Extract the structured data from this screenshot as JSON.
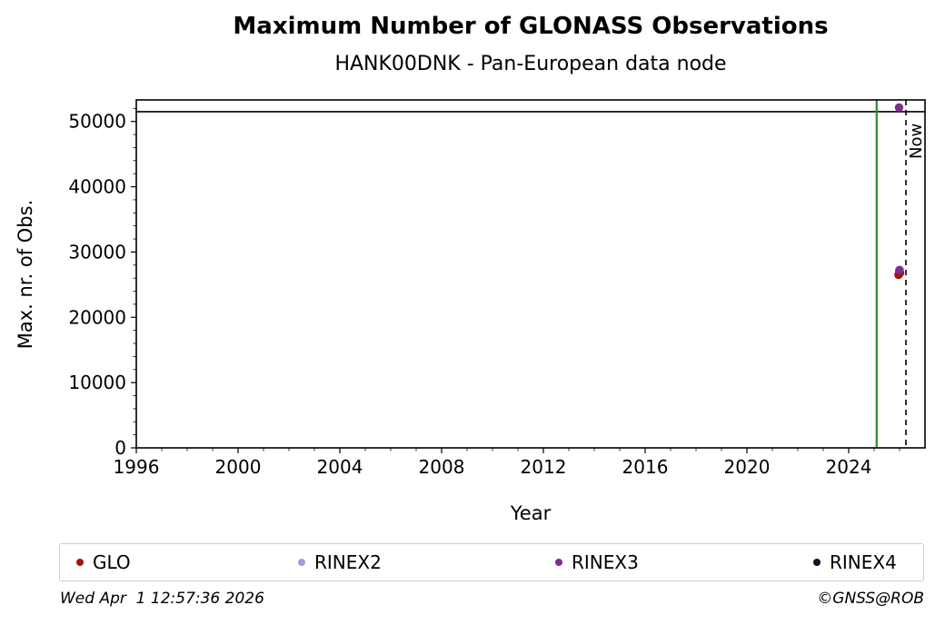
{
  "chart_data": {
    "type": "scatter",
    "title": "Maximum Number of GLONASS Observations",
    "subtitle": "HANK00DNK - Pan-European data node",
    "xlabel": "Year",
    "ylabel": "Max. nr. of Obs.",
    "xlim": [
      1996,
      2027
    ],
    "ylim": [
      0,
      53300
    ],
    "xticks": [
      1996,
      2000,
      2004,
      2008,
      2012,
      2016,
      2020,
      2024
    ],
    "yticks": [
      0,
      10000,
      20000,
      30000,
      40000,
      50000
    ],
    "x_minor_step": 1,
    "y_minor_step": 2000,
    "grid": false,
    "legend_position": "bottom",
    "series": [
      {
        "name": "GLO",
        "color": "#a31212",
        "points": [
          [
            2025.96,
            26500
          ],
          [
            2025.99,
            27100
          ],
          [
            2026.02,
            26800
          ]
        ]
      },
      {
        "name": "RINEX2",
        "color": "#9e9ed6",
        "points": []
      },
      {
        "name": "RINEX3",
        "color": "#7c2d8e",
        "points": [
          [
            2025.98,
            52150
          ],
          [
            2026.0,
            27250
          ]
        ]
      },
      {
        "name": "RINEX4",
        "color": "#1e0822",
        "points": []
      }
    ],
    "hline": {
      "y": 51500,
      "color": "#000000"
    },
    "vlines": [
      {
        "x": 2025.1,
        "color": "#2e8b2e",
        "style": "solid",
        "label": ""
      },
      {
        "x": 2026.25,
        "color": "#000000",
        "style": "dashed",
        "label": "Now"
      }
    ]
  },
  "footer": {
    "timestamp": "Wed Apr  1 12:57:36 2026",
    "credit": "©GNSS@ROB"
  }
}
